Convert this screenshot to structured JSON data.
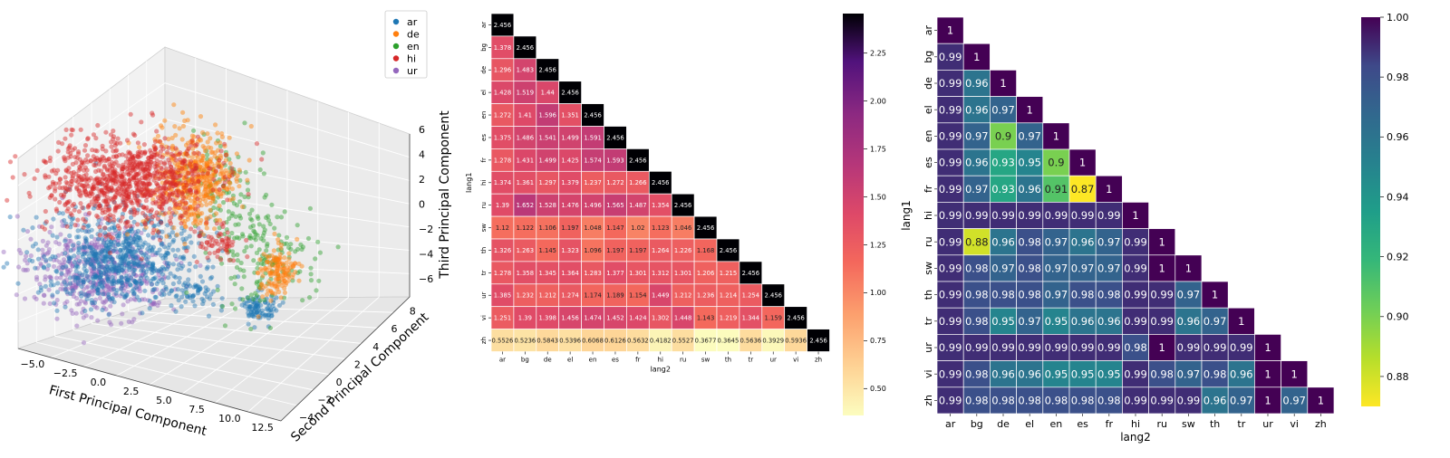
{
  "chart_data": [
    {
      "type": "scatter",
      "projection": "3d",
      "xlabel": "First Principal Component",
      "ylabel": "Second Principal Component",
      "zlabel": "Third Principal Component",
      "x_ticks": [
        "−5.0",
        "−2.5",
        "0.0",
        "2.5",
        "5.0",
        "7.5",
        "10.0",
        "12.5"
      ],
      "y_ticks": [
        "−4",
        "−2",
        "0",
        "2",
        "4",
        "6",
        "8"
      ],
      "z_ticks": [
        "−6",
        "−4",
        "−2",
        "0",
        "2",
        "4",
        "6"
      ],
      "legend_position": "top-right",
      "series": [
        {
          "name": "ar",
          "color": "#1f77b4"
        },
        {
          "name": "de",
          "color": "#ff7f0e"
        },
        {
          "name": "en",
          "color": "#2ca02c"
        },
        {
          "name": "hi",
          "color": "#d62728"
        },
        {
          "name": "ur",
          "color": "#9467bd"
        }
      ]
    },
    {
      "type": "heatmap",
      "mask": "upper-triangle",
      "colormap": "magma_r",
      "xlabel": "lang2",
      "ylabel": "lang1",
      "labels": [
        "ar",
        "bg",
        "de",
        "el",
        "en",
        "es",
        "fr",
        "hi",
        "ru",
        "sw",
        "th",
        "tr",
        "ur",
        "vi",
        "zh"
      ],
      "rows": [
        [
          "2.456"
        ],
        [
          "1.378",
          "2.456"
        ],
        [
          "1.296",
          "1.483",
          "2.456"
        ],
        [
          "1.428",
          "1.519",
          "1.44",
          "2.456"
        ],
        [
          "1.272",
          "1.41",
          "1.596",
          "1.351",
          "2.456"
        ],
        [
          "1.375",
          "1.486",
          "1.541",
          "1.499",
          "1.591",
          "2.456"
        ],
        [
          "1.278",
          "1.431",
          "1.499",
          "1.425",
          "1.574",
          "1.593",
          "2.456"
        ],
        [
          "1.374",
          "1.361",
          "1.297",
          "1.379",
          "1.237",
          "1.272",
          "1.266",
          "2.456"
        ],
        [
          "1.39",
          "1.652",
          "1.528",
          "1.476",
          "1.496",
          "1.565",
          "1.487",
          "1.354",
          "2.456"
        ],
        [
          "1.12",
          "1.122",
          "1.106",
          "1.197",
          "1.048",
          "1.147",
          "1.02",
          "1.123",
          "1.046",
          "2.456"
        ],
        [
          "1.326",
          "1.263",
          "1.145",
          "1.323",
          "1.096",
          "1.197",
          "1.197",
          "1.264",
          "1.226",
          "1.168",
          "2.456"
        ],
        [
          "1.278",
          "1.358",
          "1.345",
          "1.364",
          "1.283",
          "1.377",
          "1.301",
          "1.312",
          "1.301",
          "1.206",
          "1.215",
          "2.456"
        ],
        [
          "1.385",
          "1.232",
          "1.212",
          "1.274",
          "1.174",
          "1.189",
          "1.154",
          "1.449",
          "1.212",
          "1.236",
          "1.214",
          "1.254",
          "2.456"
        ],
        [
          "1.251",
          "1.39",
          "1.398",
          "1.456",
          "1.474",
          "1.452",
          "1.424",
          "1.302",
          "1.448",
          "1.143",
          "1.219",
          "1.344",
          "1.159",
          "2.456"
        ],
        [
          "0.5526",
          "0.5236",
          "0.5843",
          "0.5396",
          "0.6068",
          "0.6126",
          "0.5632",
          "0.4182",
          "0.5527",
          "0.3677",
          "0.3645",
          "0.5636",
          "0.3929",
          "0.5936",
          "2.456"
        ]
      ],
      "vmin": 0.36,
      "vmax": 2.456,
      "colorbar_ticks": [
        "0.50",
        "0.75",
        "1.00",
        "1.25",
        "1.50",
        "1.75",
        "2.00",
        "2.25"
      ]
    },
    {
      "type": "heatmap",
      "mask": "upper-triangle",
      "colormap": "viridis_r",
      "xlabel": "lang2",
      "ylabel": "lang1",
      "labels": [
        "ar",
        "bg",
        "de",
        "el",
        "en",
        "es",
        "fr",
        "hi",
        "ru",
        "sw",
        "th",
        "tr",
        "ur",
        "vi",
        "zh"
      ],
      "rows": [
        [
          "1"
        ],
        [
          "0.99",
          "1"
        ],
        [
          "0.99",
          "0.96",
          "1"
        ],
        [
          "0.99",
          "0.96",
          "0.97",
          "1"
        ],
        [
          "0.99",
          "0.97",
          "0.9",
          "0.97",
          "1"
        ],
        [
          "0.99",
          "0.96",
          "0.93",
          "0.95",
          "0.9",
          "1"
        ],
        [
          "0.99",
          "0.97",
          "0.93",
          "0.96",
          "0.91",
          "0.87",
          "1"
        ],
        [
          "0.99",
          "0.99",
          "0.99",
          "0.99",
          "0.99",
          "0.99",
          "0.99",
          "1"
        ],
        [
          "0.99",
          "0.88",
          "0.96",
          "0.98",
          "0.97",
          "0.96",
          "0.97",
          "0.99",
          "1"
        ],
        [
          "0.99",
          "0.98",
          "0.97",
          "0.98",
          "0.97",
          "0.97",
          "0.97",
          "0.99",
          "1",
          "1"
        ],
        [
          "0.99",
          "0.98",
          "0.98",
          "0.98",
          "0.97",
          "0.98",
          "0.98",
          "0.99",
          "0.99",
          "0.97",
          "1"
        ],
        [
          "0.99",
          "0.98",
          "0.95",
          "0.97",
          "0.95",
          "0.96",
          "0.96",
          "0.99",
          "0.99",
          "0.96",
          "0.97",
          "1"
        ],
        [
          "0.99",
          "0.99",
          "0.99",
          "0.99",
          "0.99",
          "0.99",
          "0.99",
          "0.98",
          "1",
          "0.99",
          "0.99",
          "0.99",
          "1"
        ],
        [
          "0.99",
          "0.98",
          "0.96",
          "0.96",
          "0.95",
          "0.95",
          "0.95",
          "0.99",
          "0.98",
          "0.97",
          "0.98",
          "0.96",
          "1",
          "1"
        ],
        [
          "0.99",
          "0.98",
          "0.98",
          "0.98",
          "0.98",
          "0.98",
          "0.98",
          "0.99",
          "0.99",
          "0.99",
          "0.96",
          "0.97",
          "1",
          "0.97",
          "1"
        ]
      ],
      "vmin": 0.87,
      "vmax": 1.0,
      "colorbar_ticks": [
        "0.88",
        "0.90",
        "0.92",
        "0.94",
        "0.96",
        "0.98",
        "1.00"
      ]
    }
  ]
}
